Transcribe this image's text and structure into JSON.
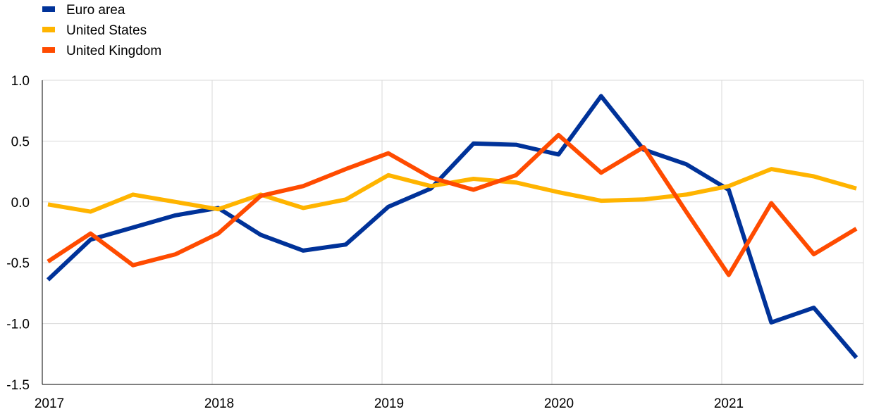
{
  "chart_data": {
    "type": "line",
    "title": "",
    "xlabel": "",
    "ylabel": "",
    "ylim": [
      -1.5,
      1.0
    ],
    "xlim": [
      2017.0,
      2021.833
    ],
    "grid": true,
    "legend_position": "top-left",
    "y_ticks": [
      "1.0",
      "0.5",
      "0.0",
      "-0.5",
      "-1.0",
      "-1.5"
    ],
    "y_tick_values": [
      1.0,
      0.5,
      0.0,
      -0.5,
      -1.0,
      -1.5
    ],
    "x_ticks": [
      "2017",
      "2018",
      "2019",
      "2020",
      "2021"
    ],
    "x_tick_values": [
      2017,
      2018,
      2019,
      2020,
      2021
    ],
    "x": [
      "2017-Q1",
      "2017-Q2",
      "2017-Q3",
      "2017-Q4",
      "2018-Q1",
      "2018-Q2",
      "2018-Q3",
      "2018-Q4",
      "2019-Q1",
      "2019-Q2",
      "2019-Q3",
      "2019-Q4",
      "2020-Q1",
      "2020-Q2",
      "2020-Q3",
      "2020-Q4",
      "2021-Q1",
      "2021-Q2",
      "2021-Q3",
      "2021-Q4"
    ],
    "series": [
      {
        "name": "Euro area",
        "color": "#003299",
        "values": [
          -0.64,
          -0.31,
          -0.21,
          -0.11,
          -0.05,
          -0.27,
          -0.4,
          -0.35,
          -0.04,
          0.11,
          0.48,
          0.47,
          0.39,
          0.87,
          0.43,
          0.31,
          0.1,
          -0.99,
          -0.87,
          -1.28
        ]
      },
      {
        "name": "United States",
        "color": "#FFB400",
        "values": [
          -0.02,
          -0.08,
          0.06,
          0.0,
          -0.06,
          0.06,
          -0.05,
          0.02,
          0.22,
          0.13,
          0.19,
          0.16,
          0.08,
          0.01,
          0.02,
          0.06,
          0.13,
          0.27,
          0.21,
          0.11
        ]
      },
      {
        "name": "United Kingdom",
        "color": "#FF4B00",
        "values": [
          -0.49,
          -0.26,
          -0.52,
          -0.43,
          -0.26,
          0.05,
          0.13,
          0.27,
          0.4,
          0.2,
          0.1,
          0.22,
          0.55,
          0.24,
          0.45,
          -0.08,
          -0.6,
          -0.01,
          -0.43,
          -0.22
        ]
      }
    ]
  }
}
